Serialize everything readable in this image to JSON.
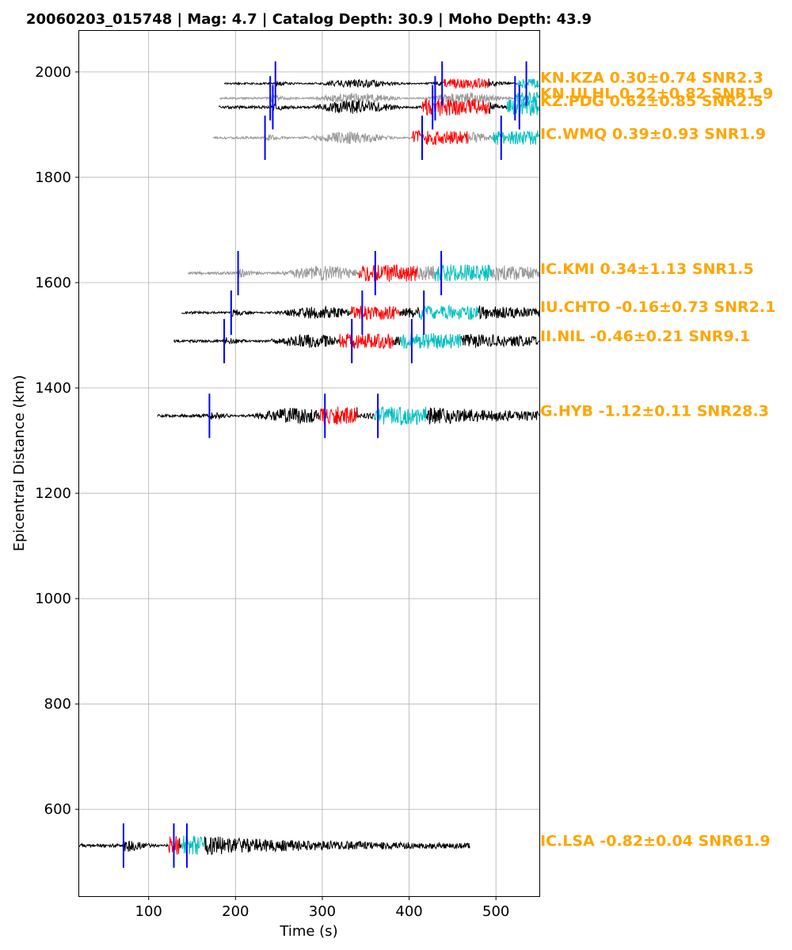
{
  "chart_data": {
    "type": "line",
    "title": "20060203_015748 | Mag: 4.7 | Catalog Depth: 30.9 | Moho Depth: 43.9",
    "xlabel": "Time (s)",
    "ylabel": "Epicentral Distance (km)",
    "xlim": [
      20,
      550
    ],
    "ylim": [
      435,
      2078
    ],
    "x_ticks": [
      100,
      200,
      300,
      400,
      500
    ],
    "y_ticks": [
      600,
      800,
      1000,
      1200,
      1400,
      1600,
      1800,
      2000
    ],
    "grid": true,
    "colors": {
      "label": "#FFA500",
      "pick_marker": "#0000FF",
      "window_1": "#FF0000",
      "window_2": "#00BFBF",
      "trace_dark": "#000000",
      "trace_gray": "#999999"
    },
    "traces": [
      {
        "station": "KN.KZA",
        "label": "KN.KZA 0.30±0.74 SNR2.3",
        "distance": 1978,
        "label_y": 1990,
        "t_start": 187,
        "t_end": 550,
        "color": "black",
        "amp": 7,
        "window_1": [
          440,
          492
        ],
        "window_2": [
          525,
          550
        ],
        "picks": [
          246,
          438,
          535
        ]
      },
      {
        "station": "KN.ULHL",
        "label": "KN.ULHL 0.22±0.82 SNR1.9",
        "distance": 1950,
        "label_y": 1960,
        "t_start": 182,
        "t_end": 550,
        "color": "gray",
        "amp": 9,
        "window_1": [
          0,
          0
        ],
        "window_2": [
          522,
          550
        ],
        "picks": [
          240,
          430,
          522
        ]
      },
      {
        "station": "KZ.PDG",
        "label": "KZ.PDG 0.62±0.85 SNR2.5",
        "distance": 1933,
        "label_y": 1946,
        "t_start": 181,
        "t_end": 550,
        "color": "black",
        "amp": 12,
        "window_1": [
          415,
          493
        ],
        "window_2": [
          513,
          550
        ],
        "picks": [
          243,
          427,
          527
        ]
      },
      {
        "station": "IC.WMQ",
        "label": "IC.WMQ 0.39±0.93 SNR1.9",
        "distance": 1875,
        "label_y": 1883,
        "t_start": 174,
        "t_end": 550,
        "color": "gray",
        "amp": 10,
        "window_1": [
          403,
          468
        ],
        "window_2": [
          497,
          550
        ],
        "picks": [
          234,
          415,
          506
        ]
      },
      {
        "station": "IC.KMI",
        "label": "IC.KMI 0.34±1.13 SNR1.5",
        "distance": 1618,
        "label_y": 1627,
        "t_start": 145,
        "t_end": 550,
        "color": "gray",
        "amp": 12,
        "window_1": [
          342,
          410
        ],
        "window_2": [
          430,
          495
        ],
        "picks": [
          203,
          361,
          437
        ]
      },
      {
        "station": "IU.CHTO",
        "label": "IU.CHTO -0.16±0.73 SNR2.1",
        "distance": 1543,
        "label_y": 1555,
        "t_start": 138,
        "t_end": 550,
        "color": "black",
        "amp": 10,
        "window_1": [
          333,
          390
        ],
        "window_2": [
          412,
          480
        ],
        "picks": [
          195,
          346,
          417
        ]
      },
      {
        "station": "II.NIL",
        "label": "II.NIL -0.46±0.21 SNR9.1",
        "distance": 1489,
        "label_y": 1499,
        "t_start": 129,
        "t_end": 550,
        "color": "black",
        "amp": 11,
        "window_1": [
          320,
          382
        ],
        "window_2": [
          390,
          460
        ],
        "picks": [
          187,
          334,
          403
        ]
      },
      {
        "station": "G.HYB",
        "label": "G.HYB -1.12±0.11 SNR28.3",
        "distance": 1347,
        "label_y": 1357,
        "t_start": 110,
        "t_end": 550,
        "color": "black",
        "amp": 13,
        "window_1": [
          297,
          340
        ],
        "window_2": [
          360,
          420
        ],
        "picks": [
          170,
          303,
          364
        ]
      },
      {
        "station": "IC.LSA",
        "label": "IC.LSA -0.82±0.04 SNR61.9",
        "distance": 531,
        "label_y": 541,
        "t_start": 20,
        "t_end": 470,
        "color": "black",
        "amp": 14,
        "window_1": [
          123,
          136
        ],
        "window_2": [
          138,
          165
        ],
        "picks": [
          71,
          129,
          144
        ]
      }
    ]
  }
}
